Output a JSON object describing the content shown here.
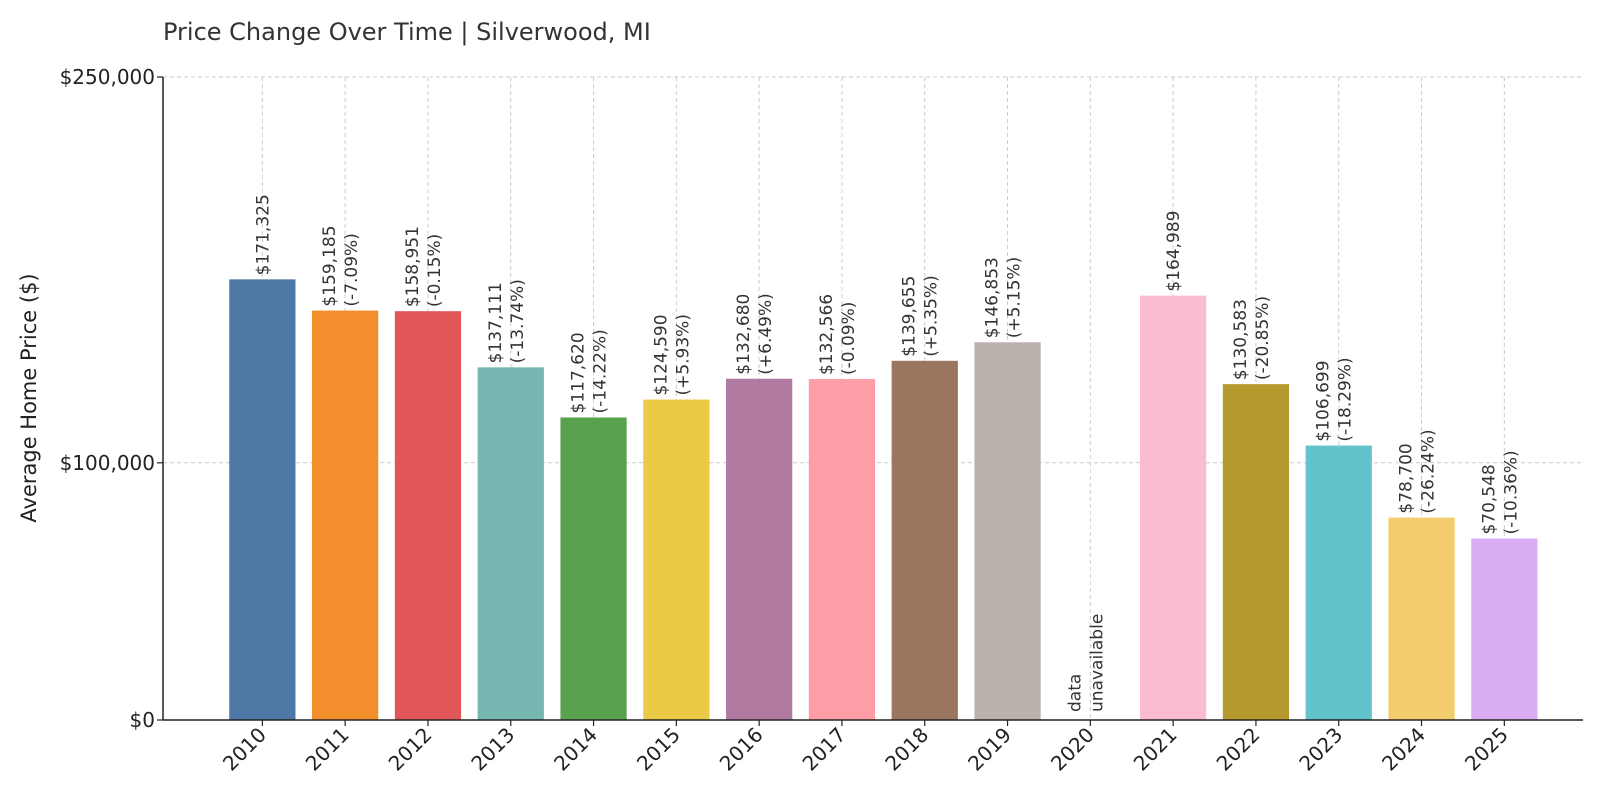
{
  "chart_data": {
    "type": "bar",
    "title": "Price Change Over Time | Silverwood, MI",
    "xlabel": "",
    "ylabel": "Average Home Price ($)",
    "ylim": [
      0,
      250000
    ],
    "yticks": [
      0,
      100000,
      250000
    ],
    "ytick_labels": [
      "$0",
      "$100,000",
      "$250,000"
    ],
    "grid": true,
    "categories": [
      "2010",
      "2011",
      "2012",
      "2013",
      "2014",
      "2015",
      "2016",
      "2017",
      "2018",
      "2019",
      "2020",
      "2021",
      "2022",
      "2023",
      "2024",
      "2025"
    ],
    "values": [
      171325,
      159185,
      158951,
      137111,
      117620,
      124590,
      132680,
      132566,
      139655,
      146853,
      null,
      164989,
      130583,
      106699,
      78700,
      70548
    ],
    "value_labels": [
      "$171,325",
      "$159,185",
      "$158,951",
      "$137,111",
      "$117,620",
      "$124,590",
      "$132,680",
      "$132,566",
      "$139,655",
      "$146,853",
      "",
      "$164,989",
      "$130,583",
      "$106,699",
      "$78,700",
      "$70,548"
    ],
    "change_labels": [
      "",
      "(-7.09%)",
      "(-0.15%)",
      "(-13.74%)",
      "(-14.22%)",
      "(+5.93%)",
      "(+6.49%)",
      "(-0.09%)",
      "(+5.35%)",
      "(+5.15%)",
      "",
      "",
      "(-20.85%)",
      "(-18.29%)",
      "(-26.24%)",
      "(-10.36%)"
    ],
    "missing_label": [
      "data",
      "unavailable"
    ],
    "colors": [
      "#4e79a7",
      "#f28e2b",
      "#e15759",
      "#76b7b2",
      "#59a14f",
      "#edc948",
      "#b07aa1",
      "#ff9da7",
      "#9c755f",
      "#bab0ac",
      "#ffffff",
      "#f9bcd2",
      "#b6992d",
      "#62c3cc",
      "#f3cc6b",
      "#d9adf3"
    ]
  }
}
